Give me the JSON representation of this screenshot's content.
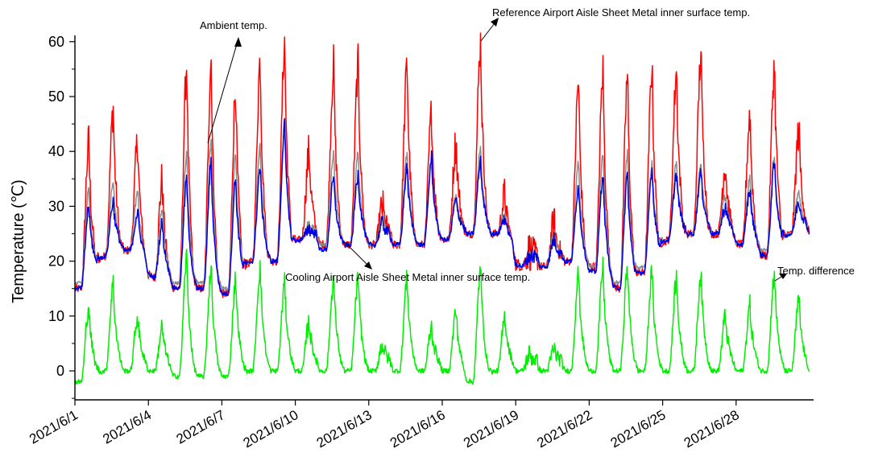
{
  "chart_data": {
    "type": "line",
    "title": "",
    "xlabel": "",
    "ylabel": "Temperature (℃)",
    "ylim": [
      -5,
      60
    ],
    "yticks": [
      0,
      10,
      20,
      30,
      40,
      50,
      60
    ],
    "xticks": [
      "2021/6/1",
      "2021/6/4",
      "2021/6/7",
      "2021/6/10",
      "2021/6/13",
      "2021/6/16",
      "2021/6/19",
      "2021/6/22",
      "2021/6/25",
      "2021/6/28"
    ],
    "grid": false,
    "x_unit": "day of June 2021",
    "days": [
      1,
      2,
      3,
      4,
      5,
      6,
      7,
      8,
      9,
      10,
      11,
      12,
      13,
      14,
      15,
      16,
      17,
      18,
      19,
      20,
      21,
      22,
      23,
      24,
      25,
      26,
      27,
      28,
      29,
      30
    ],
    "series": [
      {
        "name": "Reference Airport Aisle Sheet Metal inner surface temp.",
        "color": "#ff0000",
        "daily_min": [
          15,
          21,
          22,
          17,
          15,
          15,
          14,
          20,
          20,
          24,
          23,
          23,
          23,
          23,
          23,
          24,
          25,
          25,
          19,
          19,
          20,
          19,
          15,
          18,
          24,
          25,
          25,
          23,
          21,
          25
        ],
        "daily_max": [
          42,
          48,
          42,
          35,
          56,
          57,
          52,
          57,
          60,
          40,
          56,
          56,
          30,
          56,
          47,
          42,
          60,
          32,
          22,
          27,
          53,
          55,
          54,
          56,
          55,
          58,
          38,
          47,
          56,
          44
        ]
      },
      {
        "name": "Ambient temp.",
        "color": "#8c8c8c",
        "daily_min": [
          16,
          21,
          22,
          17,
          16,
          16,
          15,
          20,
          20,
          24,
          23,
          23,
          23,
          23,
          23,
          24,
          25,
          25,
          19,
          19,
          20,
          19,
          16,
          19,
          24,
          25,
          25,
          23,
          22,
          25
        ],
        "daily_max": [
          33,
          35,
          33,
          30,
          40,
          42,
          40,
          41,
          44,
          27,
          40,
          40,
          28,
          40,
          38,
          32,
          41,
          29,
          21,
          25,
          38,
          40,
          40,
          38,
          38,
          38,
          32,
          35,
          39,
          33
        ]
      },
      {
        "name": "Cooling Airport Aisle Sheet Metal inner surface temp.",
        "color": "#0000e6",
        "daily_min": [
          15,
          21,
          22,
          17,
          15,
          15,
          14,
          20,
          20,
          24,
          22,
          23,
          23,
          23,
          23,
          24,
          25,
          25,
          19,
          19,
          20,
          18,
          15,
          18,
          24,
          25,
          25,
          23,
          21,
          25
        ],
        "daily_max": [
          30,
          31,
          29,
          27,
          35,
          38,
          35,
          37,
          45,
          26,
          35,
          36,
          27,
          37,
          39,
          31,
          38,
          28,
          21,
          24,
          34,
          36,
          36,
          37,
          36,
          36,
          30,
          33,
          38,
          31
        ]
      },
      {
        "name": "Temp. difference",
        "color": "#00ee00",
        "daily_min": [
          -2,
          0,
          0,
          0,
          -1,
          -1,
          -1,
          0,
          0,
          0,
          0,
          0,
          0,
          0,
          0,
          0,
          -2,
          0,
          0,
          0,
          0,
          0,
          0,
          0,
          0,
          0,
          0,
          0,
          0,
          0
        ],
        "daily_max": [
          12,
          16,
          10,
          8,
          21,
          19,
          17,
          19,
          16,
          9,
          17,
          17,
          5,
          17,
          8,
          11,
          19,
          10,
          3,
          4,
          18,
          19,
          19,
          18,
          17,
          18,
          10,
          12,
          18,
          13
        ]
      }
    ],
    "annotations": [
      "Ambient temp.",
      "Reference Airport Aisle Sheet Metal inner surface temp.",
      "Cooling Airport Aisle Sheet Metal inner surface temp.",
      "Temp. difference"
    ]
  }
}
